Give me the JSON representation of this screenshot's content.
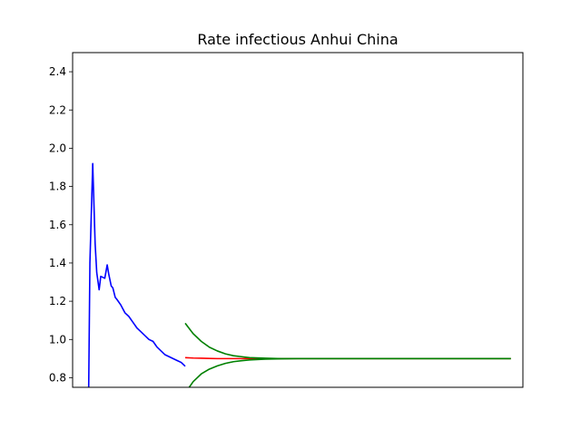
{
  "chart_data": {
    "type": "line",
    "title": "Rate infectious Anhui China",
    "xlabel": "",
    "ylabel": "",
    "ylim": [
      0.75,
      2.5
    ],
    "xlim": [
      -4,
      108
    ],
    "y_ticks": [
      "0.8",
      "1.0",
      "1.2",
      "1.4",
      "1.6",
      "1.8",
      "2.0",
      "2.2",
      "2.4"
    ],
    "x_ticks": [],
    "grid": false,
    "series": [
      {
        "color": "#0000ff",
        "x": [
          0,
          0.3,
          1,
          1.6,
          2,
          2.6,
          3,
          4,
          4.6,
          5,
          5.6,
          6,
          6.6,
          7,
          8,
          9,
          10,
          11,
          12,
          13,
          14,
          15,
          16,
          17,
          18,
          19,
          20,
          21,
          22,
          23,
          24
        ],
        "y": [
          0.75,
          1.4,
          1.92,
          1.5,
          1.35,
          1.26,
          1.33,
          1.32,
          1.39,
          1.34,
          1.28,
          1.27,
          1.22,
          1.21,
          1.18,
          1.14,
          1.12,
          1.09,
          1.06,
          1.04,
          1.02,
          1.0,
          0.99,
          0.96,
          0.94,
          0.92,
          0.91,
          0.9,
          0.89,
          0.88,
          0.86
        ]
      },
      {
        "color": "#ff0000",
        "x": [
          24,
          26,
          28,
          30,
          32,
          34,
          36,
          38,
          40,
          44,
          50,
          60,
          70,
          80,
          90,
          100,
          105
        ],
        "y": [
          0.905,
          0.903,
          0.902,
          0.901,
          0.9,
          0.9,
          0.9,
          0.9,
          0.9,
          0.9,
          0.9,
          0.9,
          0.9,
          0.9,
          0.9,
          0.9,
          0.9
        ]
      },
      {
        "color": "#008000",
        "x": [
          24,
          26,
          28,
          30,
          32,
          34,
          36,
          38,
          40,
          44,
          48,
          52,
          56,
          60,
          70,
          80,
          90,
          100,
          105
        ],
        "y": [
          1.085,
          1.03,
          0.99,
          0.96,
          0.94,
          0.925,
          0.915,
          0.91,
          0.905,
          0.902,
          0.9,
          0.9,
          0.9,
          0.9,
          0.9,
          0.9,
          0.9,
          0.9,
          0.9
        ]
      },
      {
        "color": "#008000",
        "x": [
          25,
          26,
          28,
          30,
          32,
          34,
          36,
          38,
          40,
          44,
          48,
          52,
          56,
          60,
          70,
          80,
          90,
          100,
          105
        ],
        "y": [
          0.75,
          0.78,
          0.82,
          0.845,
          0.862,
          0.875,
          0.884,
          0.889,
          0.893,
          0.897,
          0.899,
          0.9,
          0.9,
          0.9,
          0.9,
          0.9,
          0.9,
          0.9,
          0.9
        ]
      }
    ]
  }
}
